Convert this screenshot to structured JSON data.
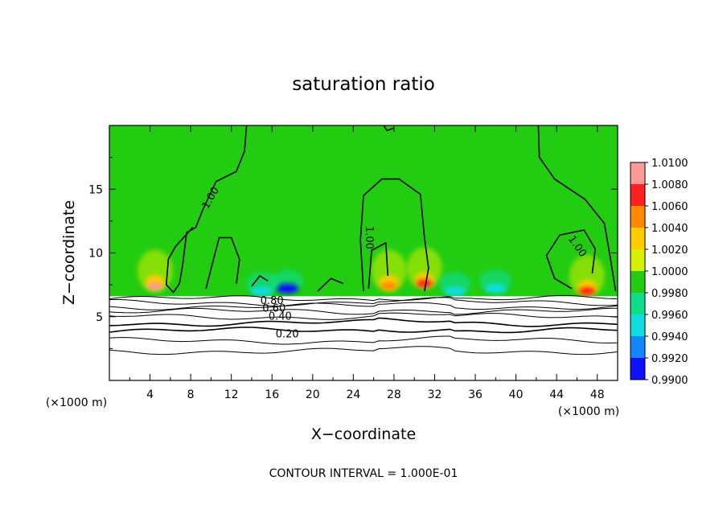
{
  "chart_data": {
    "type": "heatmap",
    "title": "saturation ratio",
    "xlabel": "X−coordinate",
    "ylabel": "Z−coordinate",
    "x_unit": "(×1000 m)",
    "y_unit": "(×1000 m)",
    "xlim": [
      0,
      50
    ],
    "ylim": [
      0,
      20
    ],
    "x_ticks": [
      4,
      8,
      12,
      16,
      20,
      24,
      28,
      32,
      36,
      40,
      44,
      48
    ],
    "y_ticks": [
      5,
      10,
      15
    ],
    "colorbar": {
      "levels": [
        "1.0100",
        "1.0080",
        "1.0060",
        "1.0040",
        "1.0020",
        "1.0000",
        "0.9980",
        "0.9960",
        "0.9940",
        "0.9920",
        "0.9900"
      ],
      "colors": [
        "#ff9999",
        "#ff2020",
        "#ff8800",
        "#ffcc00",
        "#d6f000",
        "#22cc11",
        "#10dd88",
        "#10dddd",
        "#1188ff",
        "#1010ff",
        "#8822cc"
      ]
    },
    "contour_labels": [
      "1.00",
      "1.00",
      "1.00",
      "0.80",
      "0.60",
      "0.40",
      "0.20"
    ],
    "contour_interval": "CONTOUR INTERVAL = 1.000E-01",
    "cloud_base_z": 6.6,
    "hotspots": [
      {
        "x": 4.5,
        "z": 7.4,
        "value": 1.01
      },
      {
        "x": 27.5,
        "z": 7.4,
        "value": 1.006
      },
      {
        "x": 31.0,
        "z": 7.6,
        "value": 1.008
      },
      {
        "x": 47.0,
        "z": 7.0,
        "value": 1.008
      }
    ],
    "cold_spots": [
      {
        "x": 17.5,
        "z": 7.2,
        "value": 0.992
      },
      {
        "x": 15.0,
        "z": 7.0,
        "value": 0.996
      },
      {
        "x": 34.0,
        "z": 7.0,
        "value": 0.996
      },
      {
        "x": 38.0,
        "z": 7.2,
        "value": 0.995
      }
    ]
  }
}
